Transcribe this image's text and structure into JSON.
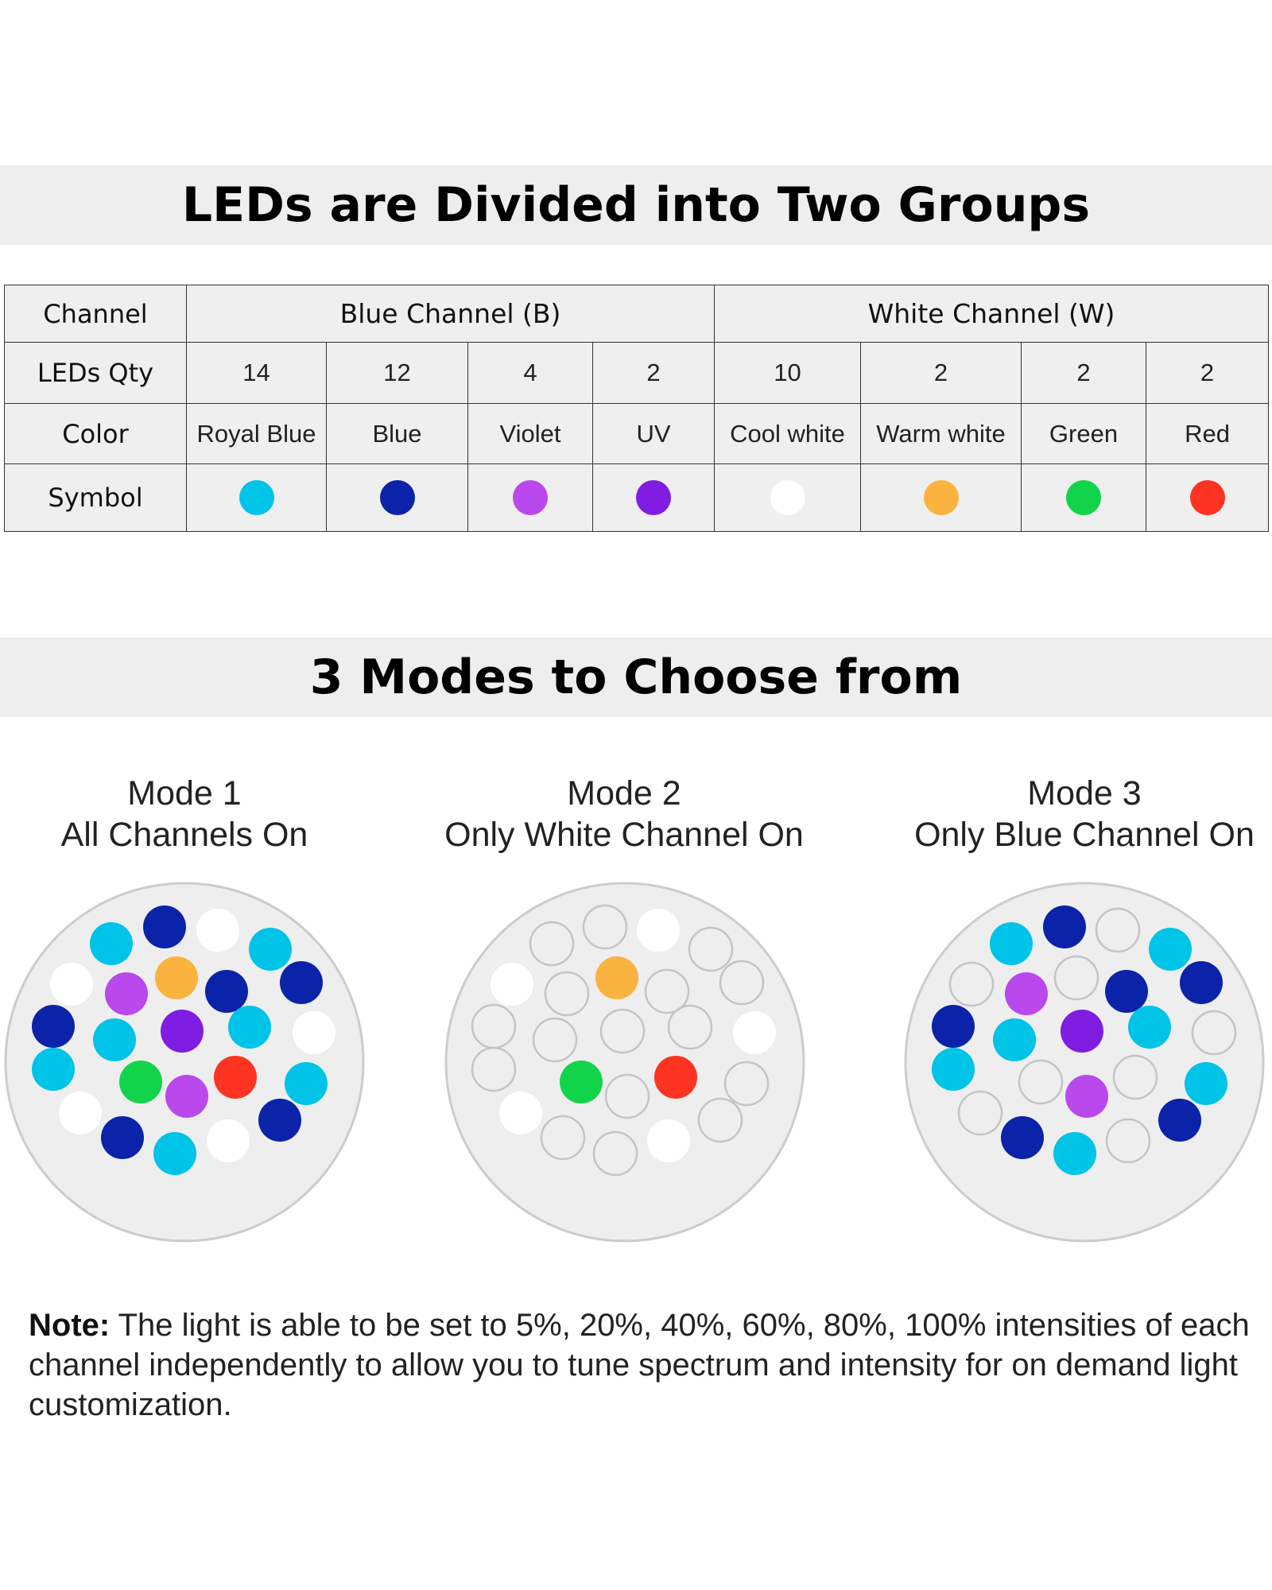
{
  "section1": {
    "title": "LEDs are Divided into Two Groups"
  },
  "table": {
    "row_labels": {
      "channel": "Channel",
      "qty": "LEDs Qty",
      "color": "Color",
      "symbol": "Symbol"
    },
    "groups": [
      "Blue Channel (B)",
      "White Channel (W)"
    ],
    "columns": [
      {
        "qty": "14",
        "color": "Royal Blue",
        "hex": "#00C3E8",
        "icon": "royal-blue-dot-icon"
      },
      {
        "qty": "12",
        "color": "Blue",
        "hex": "#0A23A8",
        "icon": "blue-dot-icon"
      },
      {
        "qty": "4",
        "color": "Violet",
        "hex": "#B949EC",
        "icon": "violet-dot-icon"
      },
      {
        "qty": "2",
        "color": "UV",
        "hex": "#7F1EE2",
        "icon": "uv-dot-icon"
      },
      {
        "qty": "10",
        "color": "Cool white",
        "hex": "#FFFFFF",
        "icon": "cool-white-dot-icon"
      },
      {
        "qty": "2",
        "color": "Warm white",
        "hex": "#FBB33F",
        "icon": "warm-white-dot-icon"
      },
      {
        "qty": "2",
        "color": "Green",
        "hex": "#12D44A",
        "icon": "green-dot-icon"
      },
      {
        "qty": "2",
        "color": "Red",
        "hex": "#FF3321",
        "icon": "red-dot-icon"
      }
    ]
  },
  "section2": {
    "title": "3 Modes to Choose from"
  },
  "modes": [
    {
      "name": "Mode 1",
      "desc": "All Channels On",
      "on": [
        "blue",
        "white"
      ]
    },
    {
      "name": "Mode 2",
      "desc": "Only White Channel On",
      "on": [
        "white"
      ]
    },
    {
      "name": "Mode 3",
      "desc": "Only Blue Channel On",
      "on": [
        "blue"
      ]
    }
  ],
  "note": {
    "label": "Note:",
    "text": " The light is able to be set to 5%, 20%, 40%, 60%, 80%, 100% intensities of each channel independently to allow you to tune spectrum and intensity for on demand light customization."
  },
  "colors": {
    "banner_bg": "#EEEEEE",
    "disc_fill": "#EEEEEE",
    "disc_border": "#CCCCCC",
    "off_led_border": "#C4C4C4"
  }
}
